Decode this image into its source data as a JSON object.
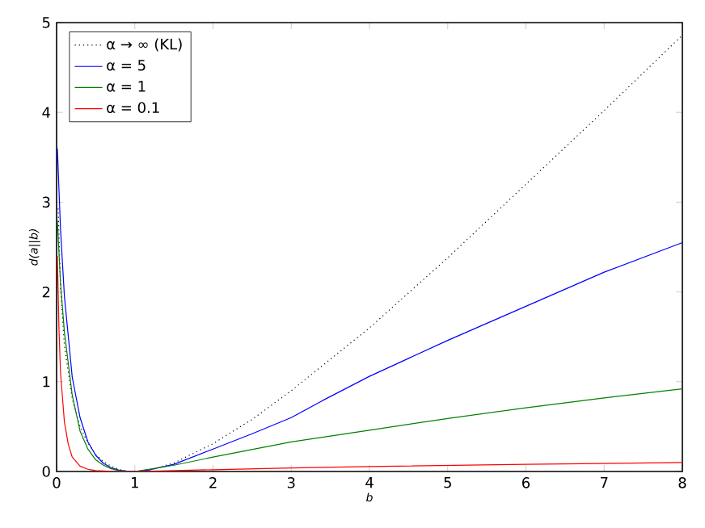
{
  "chart_data": {
    "type": "line",
    "xlabel": "b",
    "ylabel": "d(a||b)",
    "xlim": [
      0,
      8
    ],
    "ylim": [
      0,
      5
    ],
    "xticks": [
      0,
      1,
      2,
      3,
      4,
      5,
      6,
      7,
      8
    ],
    "yticks": [
      0,
      1,
      2,
      3,
      4,
      5
    ],
    "grid": false,
    "legend": "top left",
    "marker": "none",
    "series": [
      {
        "name": "α → ∞ (KL)",
        "color": "#000000",
        "line_style": "dotted",
        "x": [
          0.02,
          0.05,
          0.1,
          0.2,
          0.3,
          0.4,
          0.5,
          0.6,
          0.7,
          0.8,
          0.9,
          1,
          1.2,
          1.5,
          2,
          2.5,
          3,
          4,
          5,
          6,
          7,
          8
        ],
        "values": [
          2.93,
          2.05,
          1.4,
          0.81,
          0.5,
          0.32,
          0.19,
          0.11,
          0.057,
          0.023,
          0.005,
          0,
          0.018,
          0.095,
          0.31,
          0.58,
          0.9,
          1.6,
          2.38,
          3.2,
          4.02,
          4.86
        ]
      },
      {
        "name": "α = 5",
        "color": "#0000ff",
        "line_style": "solid",
        "x": [
          0.01,
          0.05,
          0.1,
          0.2,
          0.3,
          0.4,
          0.5,
          0.6,
          0.7,
          0.8,
          0.9,
          1,
          1.2,
          1.5,
          2,
          2.5,
          3,
          3.4,
          4,
          5,
          6,
          7,
          8
        ],
        "values": [
          3.6,
          2.7,
          1.95,
          1.05,
          0.6,
          0.33,
          0.18,
          0.09,
          0.04,
          0.015,
          0.003,
          0,
          0.02,
          0.08,
          0.25,
          0.42,
          0.6,
          0.79,
          1.06,
          1.46,
          1.84,
          2.22,
          2.55
        ]
      },
      {
        "name": "α = 1",
        "color": "#008000",
        "line_style": "solid",
        "x": [
          0.01,
          0.05,
          0.1,
          0.2,
          0.3,
          0.4,
          0.5,
          0.6,
          0.7,
          0.8,
          0.9,
          1,
          1.5,
          2,
          3,
          4,
          5,
          6,
          7,
          8
        ],
        "values": [
          2.8,
          2.1,
          1.55,
          0.85,
          0.45,
          0.25,
          0.13,
          0.07,
          0.03,
          0.01,
          0.002,
          0,
          0.07,
          0.16,
          0.33,
          0.46,
          0.59,
          0.71,
          0.82,
          0.92
        ]
      },
      {
        "name": "α = 0.1",
        "color": "#ff0000",
        "line_style": "solid",
        "x": [
          0.01,
          0.03,
          0.05,
          0.1,
          0.15,
          0.2,
          0.3,
          0.4,
          0.5,
          0.7,
          1,
          2,
          3,
          4,
          6,
          8
        ],
        "values": [
          2.4,
          1.6,
          1.1,
          0.55,
          0.3,
          0.16,
          0.06,
          0.025,
          0.01,
          0.002,
          0,
          0.02,
          0.04,
          0.055,
          0.08,
          0.1
        ]
      }
    ]
  }
}
